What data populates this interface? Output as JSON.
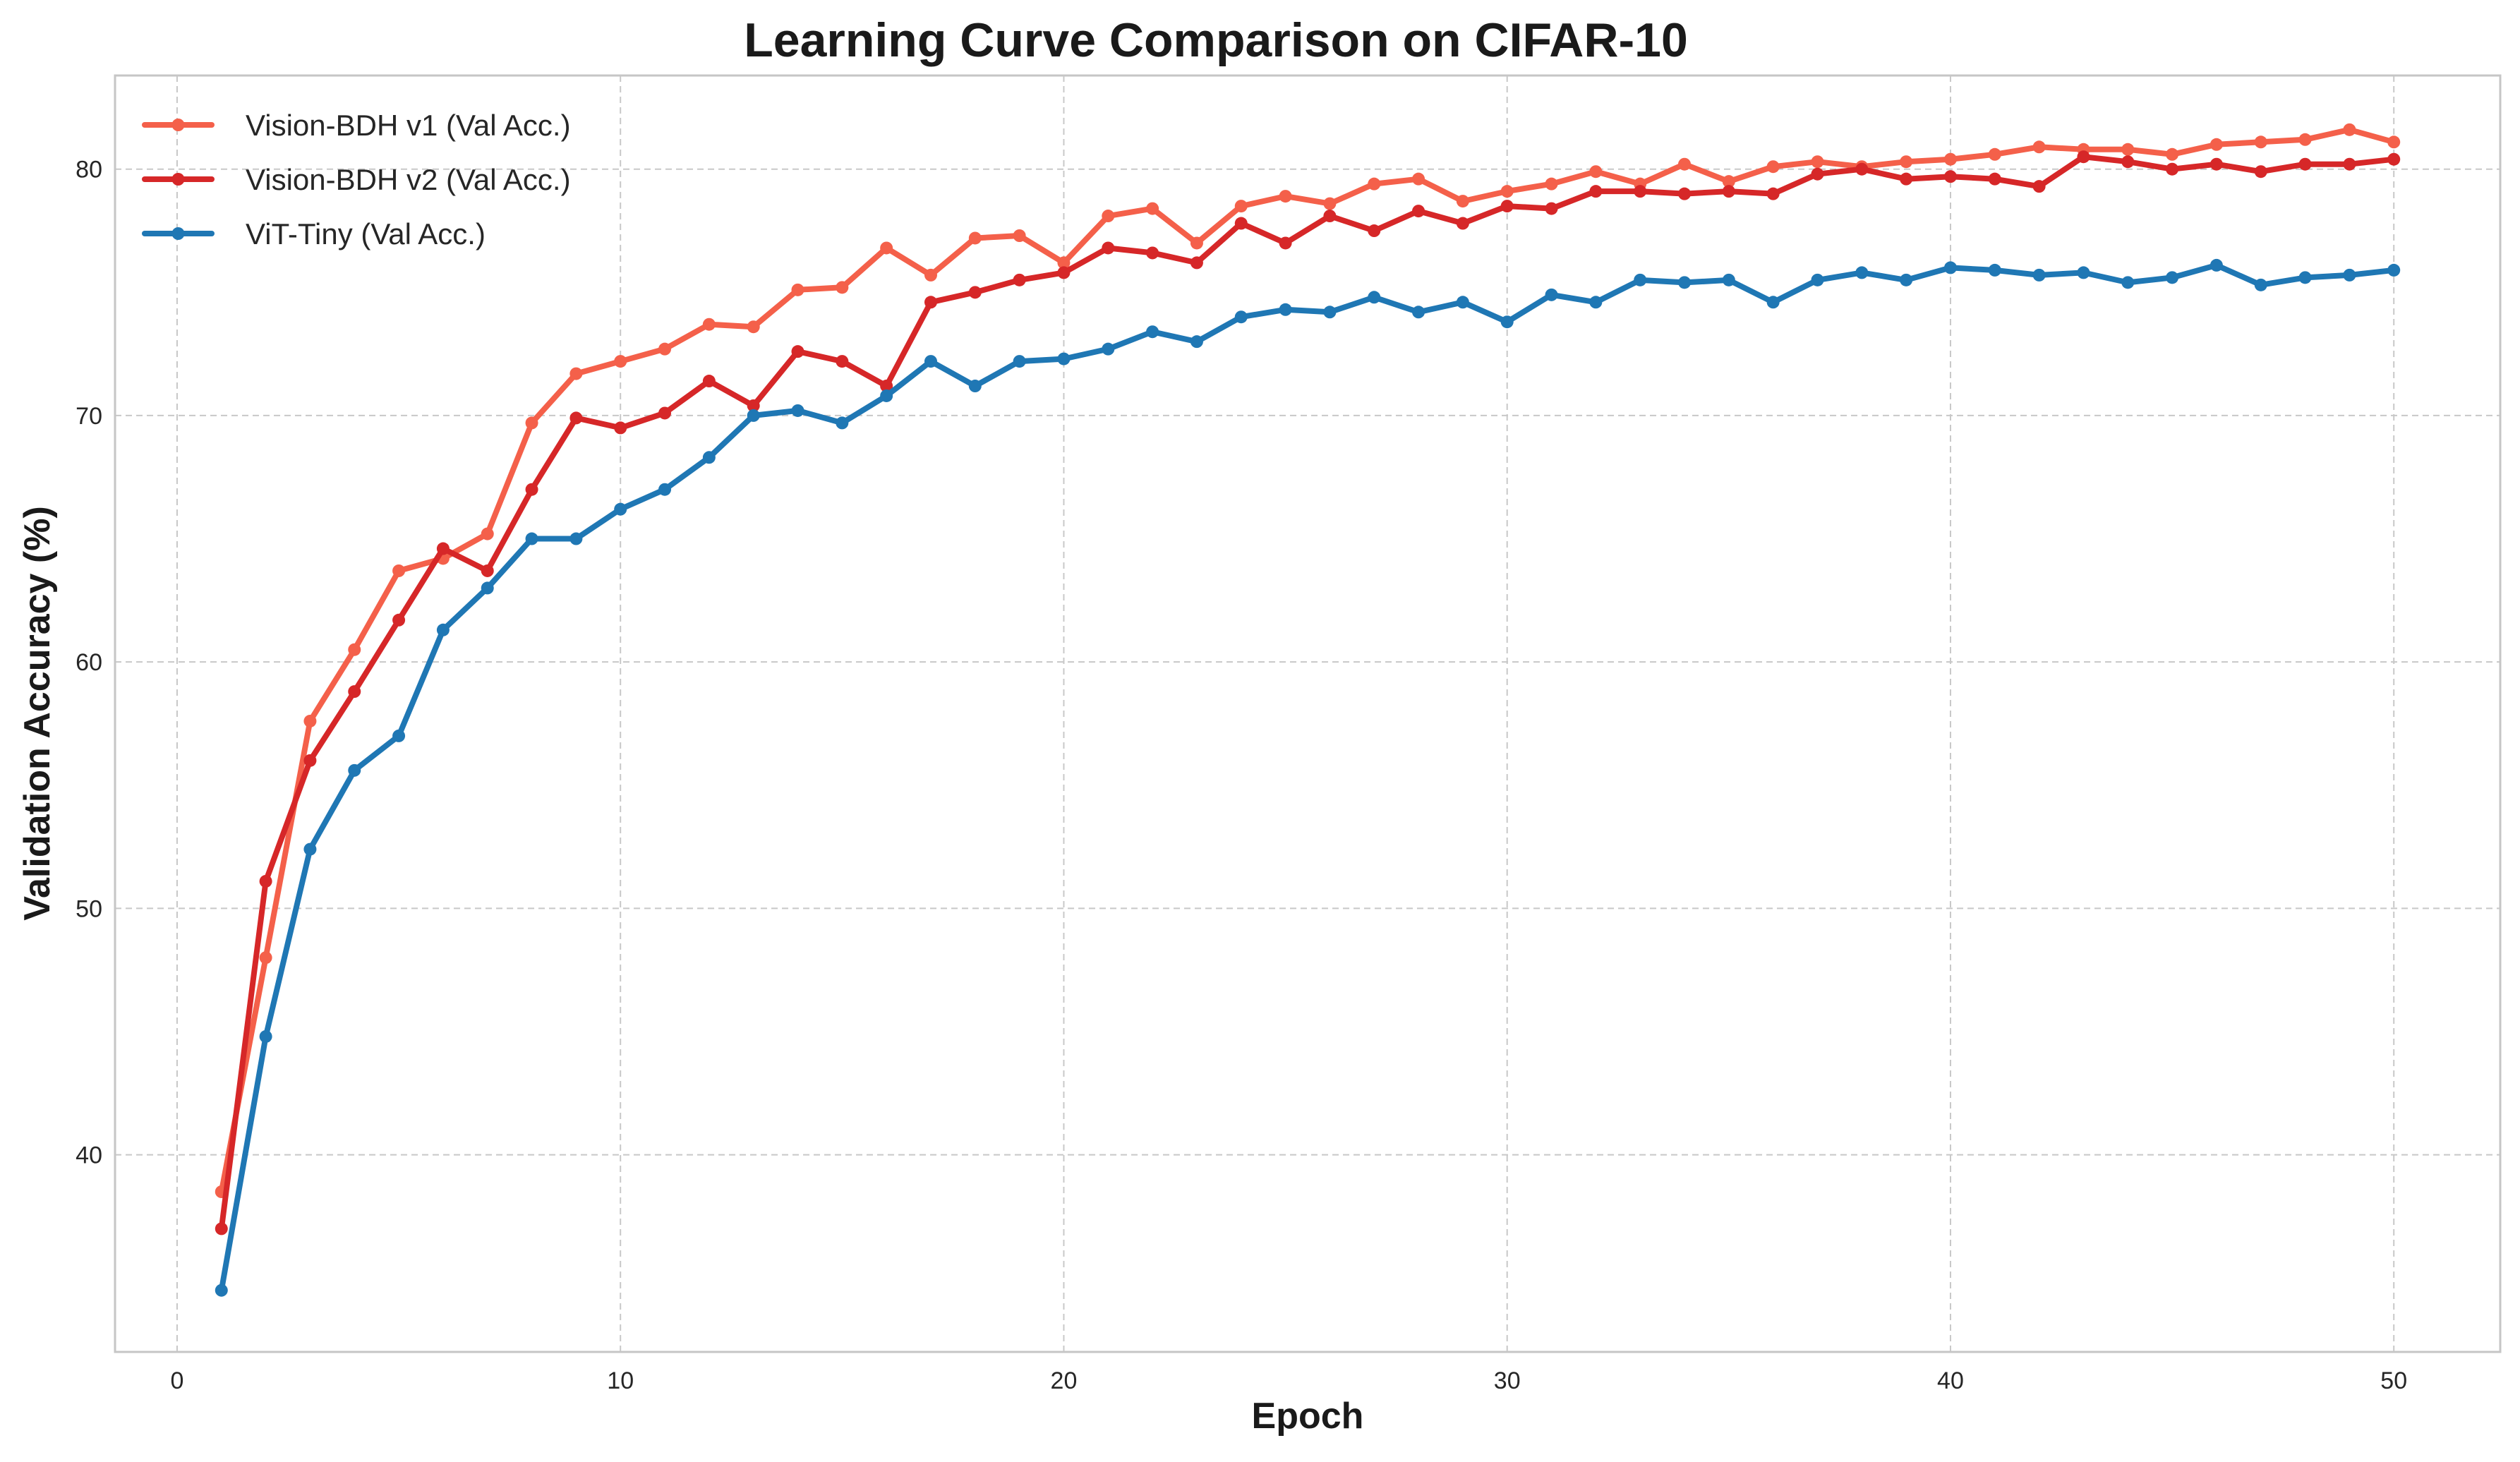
{
  "chart_data": {
    "type": "line",
    "title": "Learning Curve Comparison on CIFAR-10",
    "xlabel": "Epoch",
    "ylabel": "Validation Accuracy (%)",
    "xlim": [
      -1.4,
      52.4
    ],
    "ylim": [
      32.0,
      83.8
    ],
    "xticks": [
      0,
      10,
      20,
      30,
      40,
      50
    ],
    "yticks": [
      40,
      50,
      60,
      70,
      80
    ],
    "grid": true,
    "legend_position": "top-left",
    "x": [
      1,
      2,
      3,
      4,
      5,
      6,
      7,
      8,
      9,
      10,
      11,
      12,
      13,
      14,
      15,
      16,
      17,
      18,
      19,
      20,
      21,
      22,
      23,
      24,
      25,
      26,
      27,
      28,
      29,
      30,
      31,
      32,
      33,
      34,
      35,
      36,
      37,
      38,
      39,
      40,
      41,
      42,
      43,
      44,
      45,
      46,
      47,
      48,
      49,
      50
    ],
    "series": [
      {
        "name": "Vision-BDH v1 (Val Acc.)",
        "color": "#f4604a",
        "values": [
          38.5,
          48.0,
          57.6,
          60.5,
          63.7,
          64.2,
          65.2,
          69.7,
          71.7,
          72.2,
          72.7,
          73.7,
          73.6,
          75.1,
          75.2,
          76.8,
          75.7,
          77.2,
          77.3,
          76.2,
          78.1,
          78.4,
          77.0,
          78.5,
          78.9,
          78.6,
          79.4,
          79.6,
          78.7,
          79.1,
          79.4,
          79.9,
          79.4,
          80.2,
          79.5,
          80.1,
          80.3,
          80.1,
          80.3,
          80.4,
          80.6,
          80.9,
          80.8,
          80.8,
          80.6,
          81.0,
          81.1,
          81.2,
          81.6,
          81.1
        ]
      },
      {
        "name": "Vision-BDH v2 (Val Acc.)",
        "color": "#d62728",
        "values": [
          37.0,
          51.1,
          56.0,
          58.8,
          61.7,
          64.6,
          63.7,
          67.0,
          69.9,
          69.5,
          70.1,
          71.4,
          70.4,
          72.6,
          72.2,
          71.2,
          74.6,
          75.0,
          75.5,
          75.8,
          76.8,
          76.6,
          76.2,
          77.8,
          77.0,
          78.1,
          77.5,
          78.3,
          77.8,
          78.5,
          78.4,
          79.1,
          79.1,
          79.0,
          79.1,
          79.0,
          79.8,
          80.0,
          79.6,
          79.7,
          79.6,
          79.3,
          80.5,
          80.3,
          80.0,
          80.2,
          79.9,
          80.2,
          80.2,
          80.4
        ]
      },
      {
        "name": "ViT-Tiny (Val Acc.)",
        "color": "#1f77b4",
        "values": [
          34.5,
          44.8,
          52.4,
          55.6,
          57.0,
          61.3,
          63.0,
          65.0,
          65.0,
          66.2,
          67.0,
          68.3,
          70.0,
          70.2,
          69.7,
          70.8,
          72.2,
          71.2,
          72.2,
          72.3,
          72.7,
          73.4,
          73.0,
          74.0,
          74.3,
          74.2,
          74.8,
          74.2,
          74.6,
          73.8,
          74.9,
          74.6,
          75.5,
          75.4,
          75.5,
          74.6,
          75.5,
          75.8,
          75.5,
          76.0,
          75.9,
          75.7,
          75.8,
          75.4,
          75.6,
          76.1,
          75.3,
          75.6,
          75.7,
          75.9
        ]
      }
    ]
  }
}
